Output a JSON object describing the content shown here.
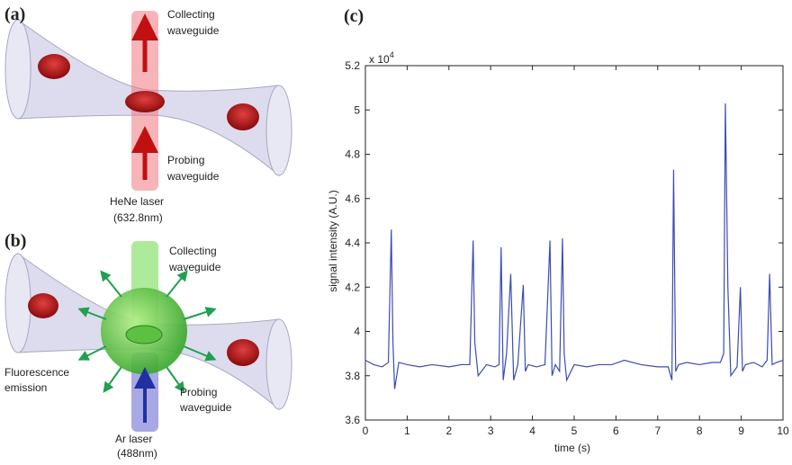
{
  "panel_a": {
    "label": "(a)",
    "collecting": [
      "Collecting",
      "waveguide"
    ],
    "probing": [
      "Probing",
      "waveguide"
    ],
    "laser": [
      "HeNe laser",
      "(632.8nm)"
    ]
  },
  "panel_b": {
    "label": "(b)",
    "collecting": [
      "Collecting",
      "waveguide"
    ],
    "fluorescence": [
      "Fluorescence",
      "emission"
    ],
    "probing": [
      "Probing",
      "waveguide"
    ],
    "laser": [
      "Ar laser",
      "(488nm)"
    ]
  },
  "chart_data": {
    "type": "line",
    "panel_label": "(c)",
    "x_label": "time (s)",
    "y_label": "signal intensity (A.U.)",
    "y_multiplier": {
      "base": "x 10",
      "exponent": "4"
    },
    "x": [
      0,
      0.2,
      0.4,
      0.55,
      0.62,
      0.66,
      0.7,
      0.8,
      1,
      1.3,
      1.6,
      2,
      2.3,
      2.5,
      2.58,
      2.62,
      2.7,
      2.9,
      3.1,
      3.2,
      3.25,
      3.3,
      3.38,
      3.48,
      3.55,
      3.65,
      3.78,
      3.83,
      3.9,
      4.1,
      4.3,
      4.42,
      4.47,
      4.55,
      4.65,
      4.72,
      4.76,
      4.82,
      5,
      5.3,
      5.6,
      5.9,
      6.2,
      6.6,
      7,
      7.25,
      7.34,
      7.38,
      7.43,
      7.5,
      7.7,
      8,
      8.3,
      8.5,
      8.58,
      8.62,
      8.68,
      8.75,
      8.9,
      8.98,
      9.03,
      9.1,
      9.3,
      9.5,
      9.62,
      9.68,
      9.74,
      9.85,
      10
    ],
    "values": [
      3.87,
      3.85,
      3.84,
      3.86,
      4.46,
      3.95,
      3.74,
      3.86,
      3.85,
      3.84,
      3.85,
      3.84,
      3.85,
      3.85,
      4.41,
      3.95,
      3.8,
      3.85,
      3.84,
      3.85,
      4.38,
      3.78,
      3.9,
      4.26,
      3.78,
      3.85,
      4.21,
      3.82,
      3.85,
      3.84,
      3.85,
      4.41,
      3.8,
      3.85,
      3.82,
      4.42,
      3.9,
      3.78,
      3.85,
      3.84,
      3.85,
      3.85,
      3.87,
      3.85,
      3.84,
      3.84,
      3.78,
      4.73,
      3.82,
      3.85,
      3.86,
      3.85,
      3.86,
      3.86,
      3.9,
      5.03,
      4.2,
      3.8,
      3.84,
      4.2,
      3.82,
      3.85,
      3.86,
      3.84,
      3.87,
      4.26,
      3.85,
      3.86,
      3.87
    ],
    "color": "#3a4cb4",
    "xlim": [
      0,
      10
    ],
    "xticks": [
      0,
      1,
      2,
      3,
      4,
      5,
      6,
      7,
      8,
      9,
      10
    ],
    "ylim": [
      3.6,
      5.2
    ],
    "yticks": [
      3.6,
      3.8,
      4,
      4.2,
      4.4,
      4.6,
      4.8,
      5,
      5.2
    ]
  }
}
